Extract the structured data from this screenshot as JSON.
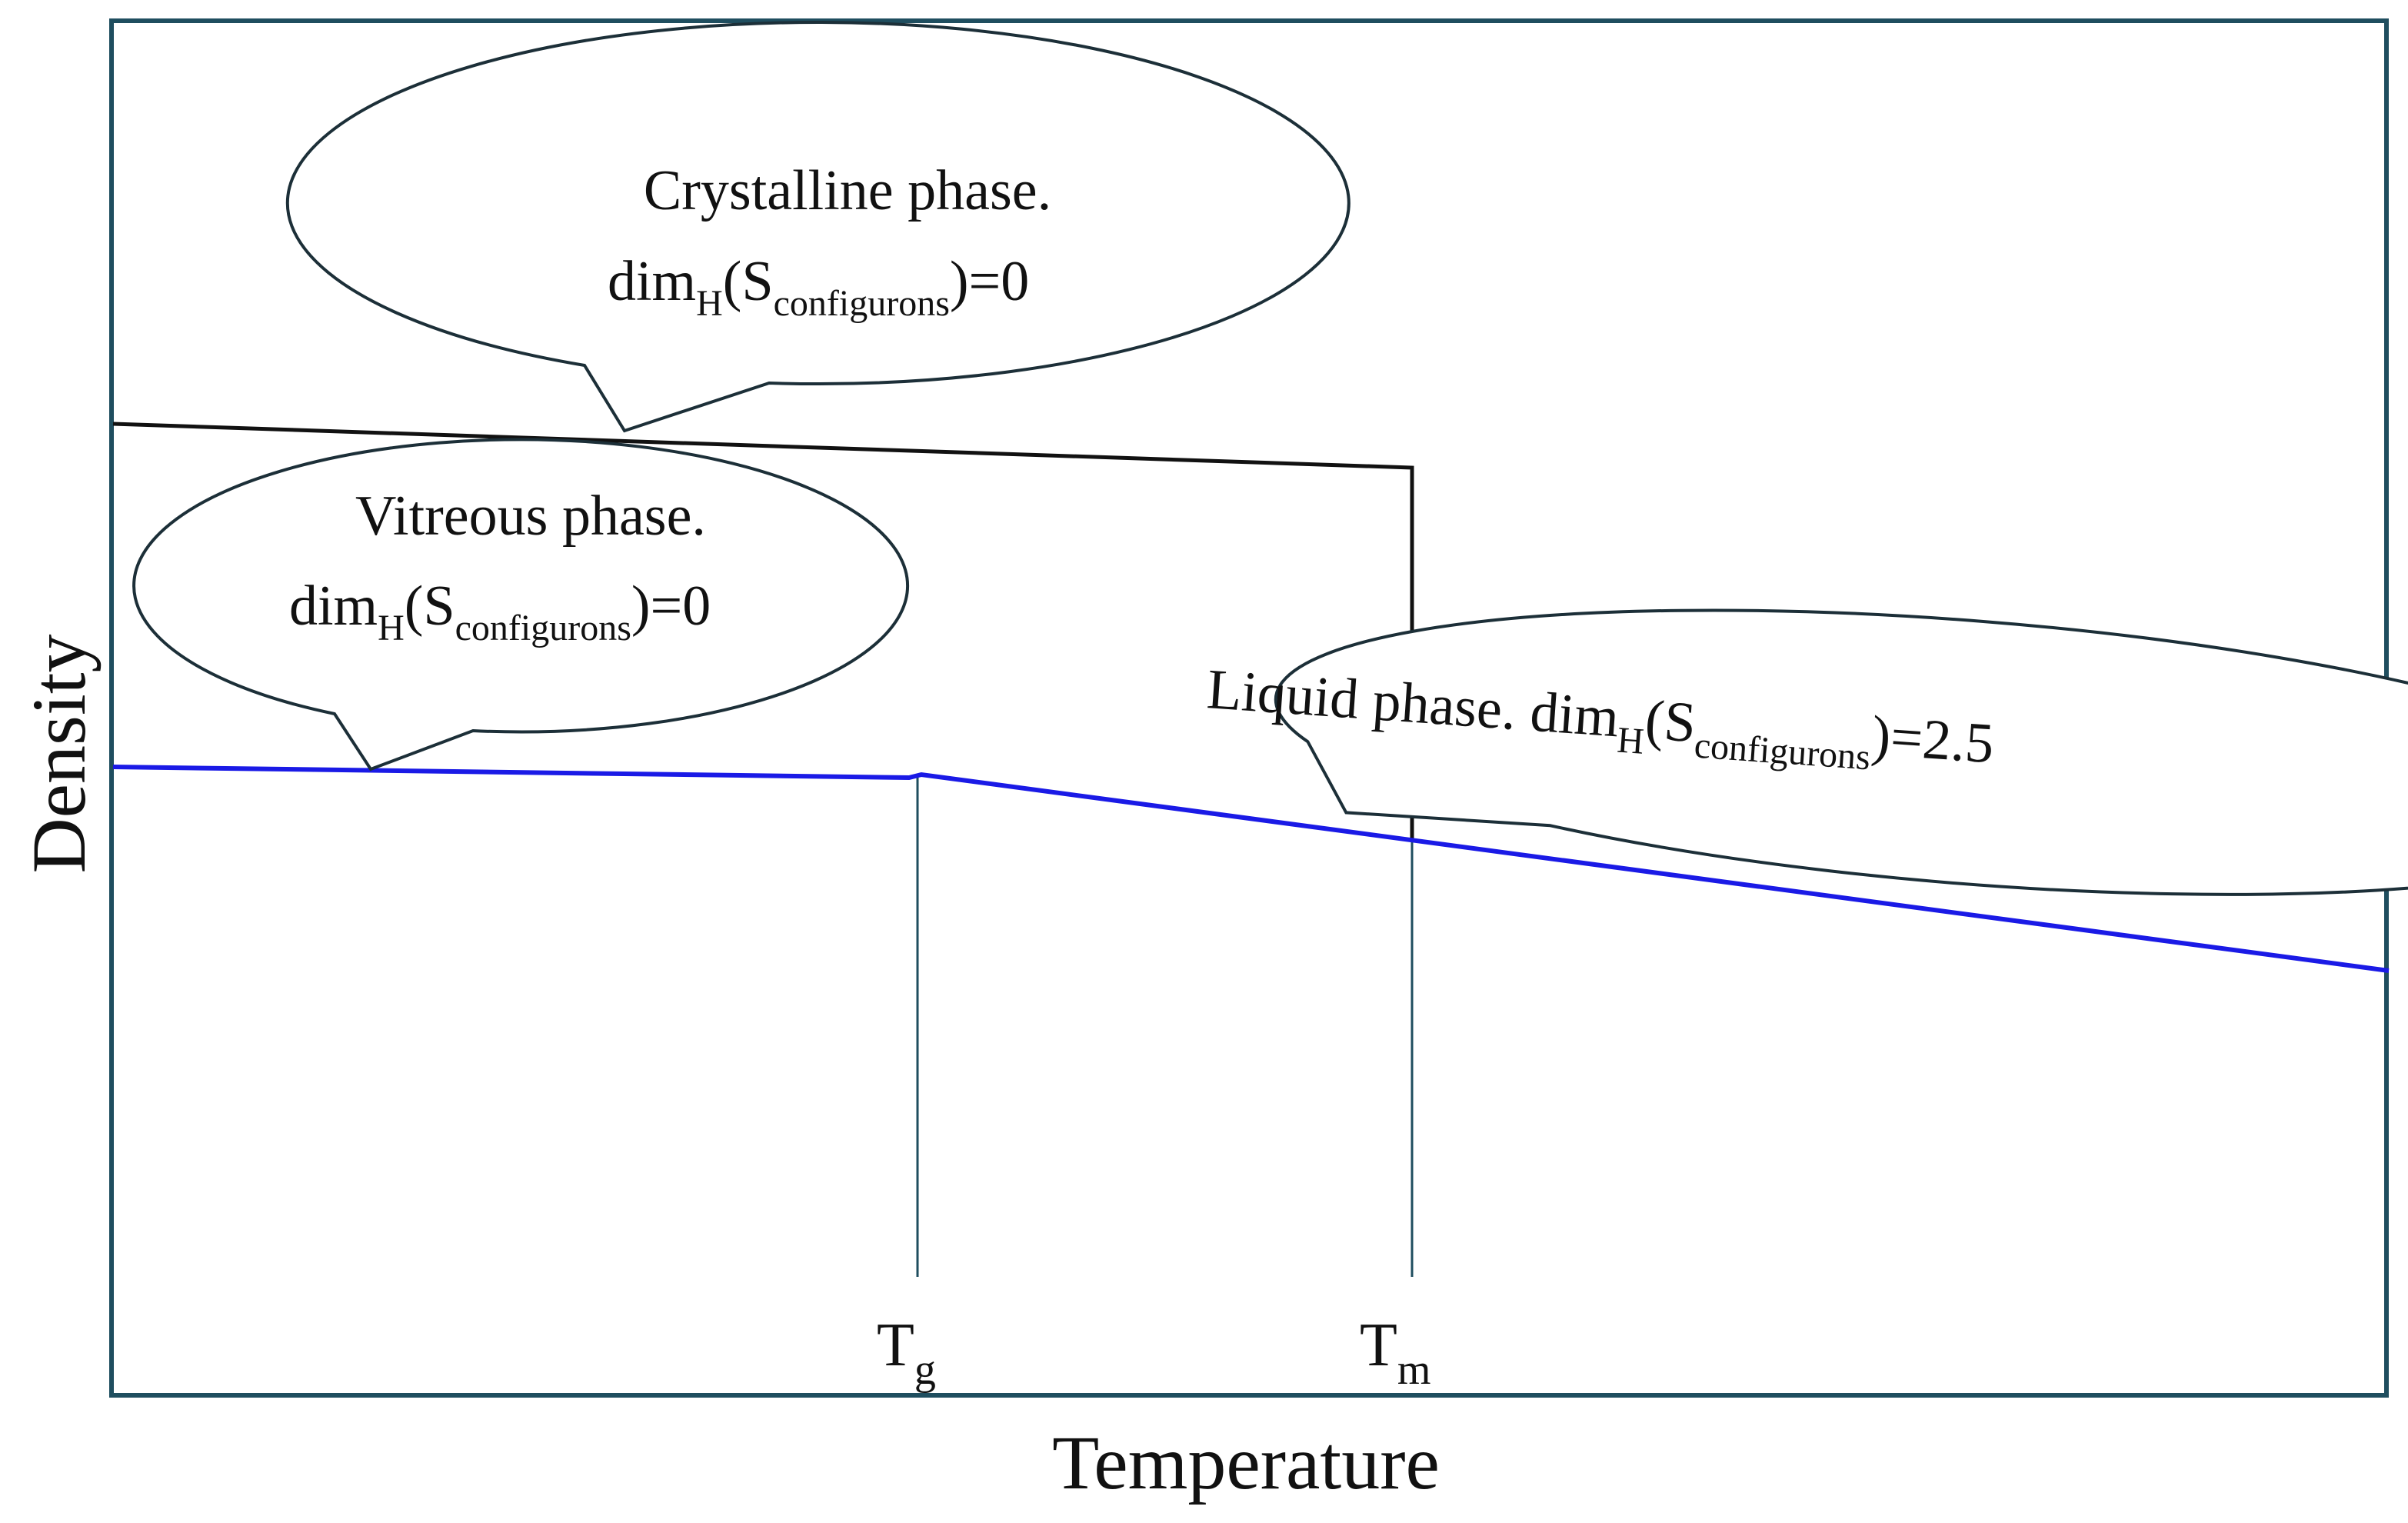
{
  "axes": {
    "x_label": "Temperature",
    "y_label": "Density"
  },
  "markers": {
    "tg": {
      "main": "T",
      "sub": "g"
    },
    "tm": {
      "main": "T",
      "sub": "m"
    }
  },
  "callouts": {
    "crystalline": {
      "line1": "Crystalline phase.",
      "dim": "dim",
      "sub_h": "H",
      "open": "(S",
      "sub_conf": "configurons",
      "tail": ")=0"
    },
    "vitreous": {
      "line1": "Vitreous phase.",
      "dim": "dim",
      "sub_h": "H",
      "open": "(S",
      "sub_conf": "configurons",
      "tail": ")=0"
    },
    "liquid": {
      "line1": "Liquid phase. dim",
      "sub_h": "H",
      "open": "(S",
      "sub_conf": "configurons",
      "tail": ")=2.5"
    }
  },
  "colors": {
    "frame": "#1f4e5f",
    "crystal_curve": "#111111",
    "glass_liquid_curve": "#1a1ae6",
    "marker_line": "#1f4e5f"
  }
}
